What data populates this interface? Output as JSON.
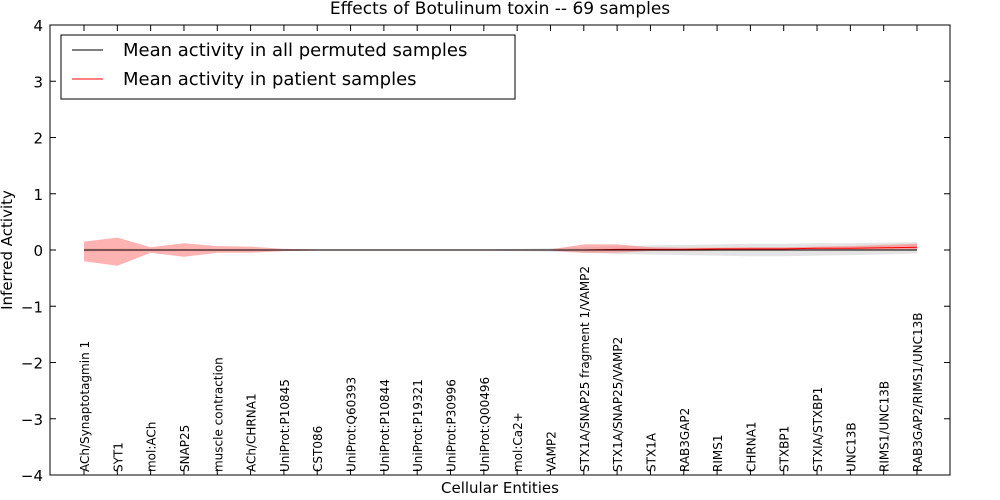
{
  "chart_data": {
    "type": "line",
    "title": "Effects of Botulinum toxin -- 69 samples",
    "xlabel": "Cellular Entities",
    "ylabel": "Inferred Activity",
    "ylim": [
      -4,
      4
    ],
    "yticks": [
      4,
      3,
      2,
      1,
      0,
      -1,
      -2,
      -3,
      -4
    ],
    "ytick_labels": [
      "4",
      "3",
      "2",
      "1",
      "0",
      "−1",
      "−2",
      "−3",
      "−4"
    ],
    "grid": false,
    "legend_position": "top-left",
    "categories": [
      "ACh/Synaptotagmin 1",
      "SYT1",
      "mol:ACh",
      "SNAP25",
      "muscle contraction",
      "ACh/CHRNA1",
      "UniProt:P10845",
      "CST086",
      "UniProt:Q60393",
      "UniProt:P10844",
      "UniProt:P19321",
      "UniProt:P30996",
      "UniProt:Q00496",
      "mol:Ca2+",
      "VAMP2",
      "STX1A/SNAP25 fragment 1/VAMP2",
      "STX1A/SNAP25/VAMP2",
      "STX1A",
      "RAB3GAP2",
      "RIMS1",
      "CHRNA1",
      "STXBP1",
      "STXIA/STXBP1",
      "UNC13B",
      "RIMS1/UNC13B",
      "RAB3GAP2/RIMS1/UNC13B"
    ],
    "series": [
      {
        "name": "Mean activity in all permuted samples",
        "color": "#000000",
        "values": [
          0,
          0,
          0,
          0,
          0,
          0,
          0,
          0,
          0,
          0,
          0,
          0,
          0,
          0,
          0,
          0,
          0,
          0,
          0,
          0,
          0,
          0,
          0,
          0,
          0,
          0
        ],
        "band_upper": [
          0.03,
          0.03,
          0.02,
          0.02,
          0.02,
          0.02,
          0.01,
          0.01,
          0.01,
          0.01,
          0.01,
          0.01,
          0.01,
          0.02,
          0.03,
          0.05,
          0.07,
          0.08,
          0.09,
          0.1,
          0.11,
          0.11,
          0.12,
          0.12,
          0.13,
          0.14
        ],
        "band_lower": [
          -0.03,
          -0.03,
          -0.02,
          -0.02,
          -0.02,
          -0.02,
          -0.01,
          -0.01,
          -0.01,
          -0.01,
          -0.01,
          -0.01,
          -0.01,
          -0.02,
          -0.03,
          -0.05,
          -0.07,
          -0.08,
          -0.09,
          -0.1,
          -0.11,
          -0.11,
          -0.1,
          -0.09,
          -0.08,
          -0.06
        ],
        "band_color": "#d9d9d9"
      },
      {
        "name": "Mean activity in patient samples",
        "color": "#ff0000",
        "values": [
          0,
          0,
          0,
          0,
          0,
          0,
          0,
          0,
          0,
          0,
          0,
          0,
          0,
          0,
          0,
          0,
          0.01,
          0.01,
          0.01,
          0.02,
          0.02,
          0.02,
          0.03,
          0.03,
          0.04,
          0.05
        ],
        "band_upper": [
          0.15,
          0.22,
          0.05,
          0.12,
          0.07,
          0.06,
          0.02,
          0.01,
          0.01,
          0.01,
          0.01,
          0.01,
          0.01,
          0.01,
          0.01,
          0.1,
          0.1,
          0.05,
          0.04,
          0.04,
          0.05,
          0.05,
          0.06,
          0.07,
          0.09,
          0.11
        ],
        "band_lower": [
          -0.2,
          -0.28,
          -0.05,
          -0.12,
          -0.05,
          -0.05,
          -0.02,
          -0.01,
          -0.01,
          -0.01,
          -0.01,
          -0.01,
          -0.01,
          -0.01,
          -0.01,
          -0.05,
          -0.05,
          -0.02,
          -0.02,
          -0.01,
          -0.01,
          -0.01,
          0,
          0,
          0,
          0
        ],
        "band_color": "#ff7373"
      }
    ]
  }
}
